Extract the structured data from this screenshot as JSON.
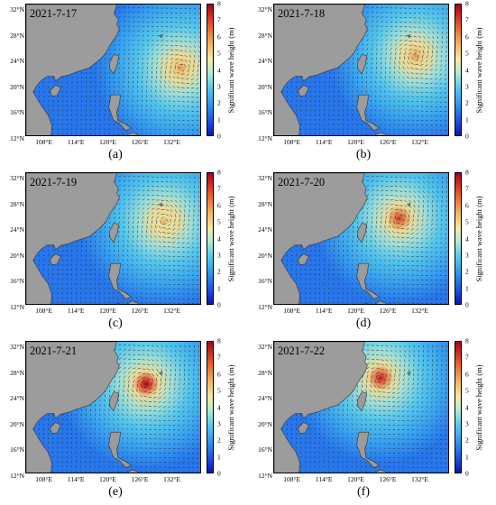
{
  "colorbar": {
    "label": "Significant wave height (m)",
    "ticks": [
      "0",
      "1",
      "2",
      "3",
      "4",
      "5",
      "6",
      "7",
      "8"
    ]
  },
  "axes": {
    "lat_ticks": [
      "32°N",
      "28°N",
      "24°N",
      "20°N",
      "16°N",
      "12°N"
    ],
    "lon_ticks": [
      "108°E",
      "114°E",
      "120°E",
      "126°E",
      "132°E"
    ]
  },
  "panels": [
    {
      "date": "2021-7-17",
      "label": "(a)",
      "center_lon": 133.5,
      "center_lat": 23.0,
      "intensity": 0.75
    },
    {
      "date": "2021-7-18",
      "label": "(b)",
      "center_lon": 131.0,
      "center_lat": 25.0,
      "intensity": 0.75
    },
    {
      "date": "2021-7-19",
      "label": "(c)",
      "center_lon": 130.5,
      "center_lat": 25.5,
      "intensity": 0.7
    },
    {
      "date": "2021-7-20",
      "label": "(d)",
      "center_lon": 128.0,
      "center_lat": 26.0,
      "intensity": 0.9
    },
    {
      "date": "2021-7-21",
      "label": "(e)",
      "center_lon": 127.0,
      "center_lat": 26.5,
      "intensity": 1.0
    },
    {
      "date": "2021-7-22",
      "label": "(f)",
      "center_lon": 124.5,
      "center_lat": 27.5,
      "intensity": 0.95
    }
  ],
  "colors": {
    "land": "#9c9c9c",
    "low": "#1d3fd6",
    "mid": "#3aa8f0",
    "high": "#d81e1e"
  }
}
